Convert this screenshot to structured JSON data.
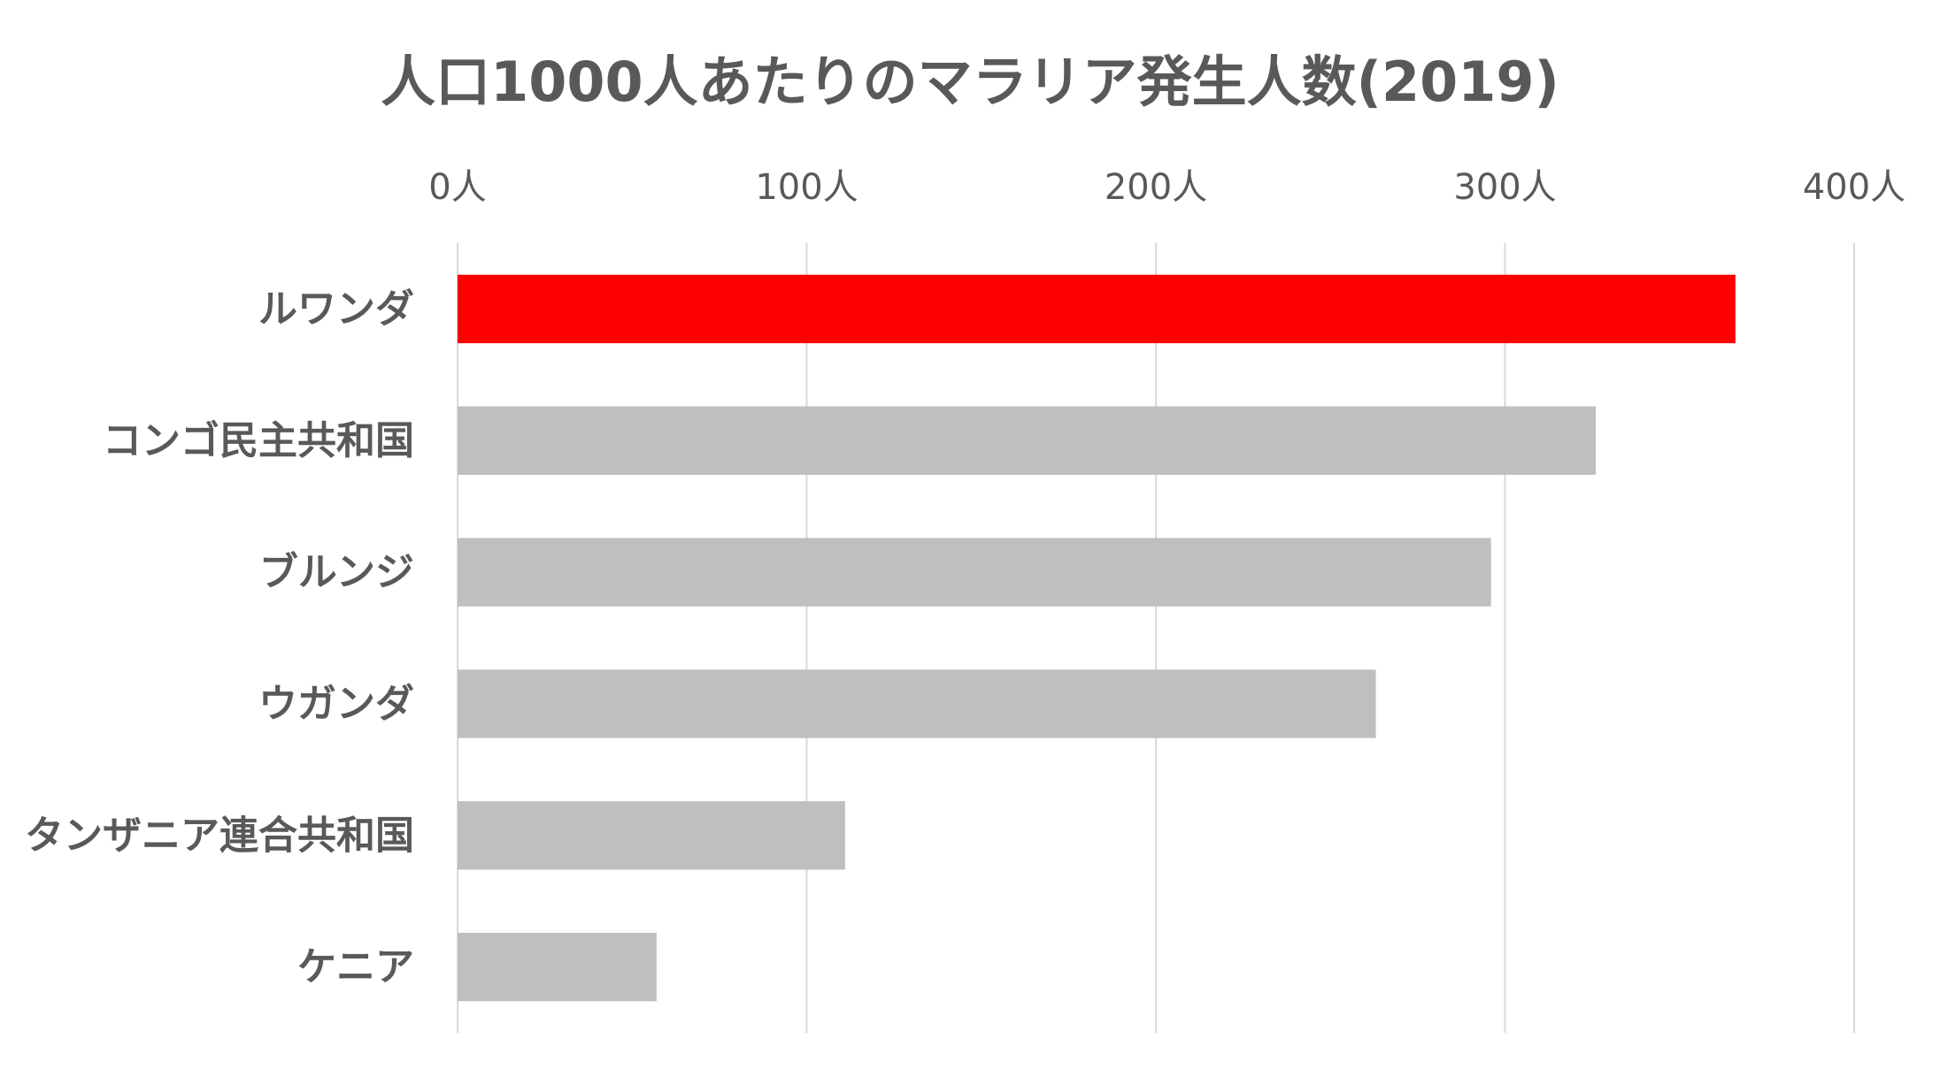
{
  "chart_data": {
    "type": "bar",
    "orientation": "horizontal",
    "title": "人口1000人あたりのマラリア発生人数(2019)",
    "xlabel": "",
    "ylabel": "",
    "xlim": [
      0,
      400
    ],
    "x_ticks": [
      {
        "value": 0,
        "label": "0人"
      },
      {
        "value": 100,
        "label": "100人"
      },
      {
        "value": 200,
        "label": "200人"
      },
      {
        "value": 300,
        "label": "300人"
      },
      {
        "value": 400,
        "label": "400人"
      }
    ],
    "x_axis_position": "top",
    "grid": true,
    "legend": "none",
    "categories": [
      "ルワンダ",
      "コンゴ民主共和国",
      "ブルンジ",
      "ウガンダ",
      "タンザニア連合共和国",
      "ケニア"
    ],
    "values": [
      366,
      326,
      296,
      263,
      111,
      57
    ],
    "colors": [
      "#ff0000",
      "#bfbfbf",
      "#bfbfbf",
      "#bfbfbf",
      "#bfbfbf",
      "#bfbfbf"
    ],
    "highlight_color": "#ff0000",
    "bar_color": "#bfbfbf",
    "text_color": "#595959",
    "grid_color": "#d9d9d9"
  }
}
